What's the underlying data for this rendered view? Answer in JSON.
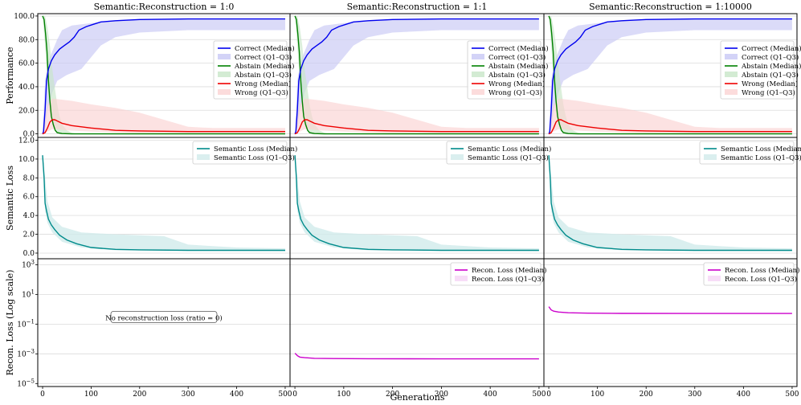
{
  "chart_data": {
    "type": "line",
    "xlabel": "Generations",
    "xlim": [
      -10,
      510
    ],
    "xticks": [
      0,
      100,
      200,
      300,
      400,
      500
    ],
    "columns": [
      {
        "title": "Semantic:Reconstruction = 1:0",
        "ratio": 0
      },
      {
        "title": "Semantic:Reconstruction = 1:1",
        "ratio": 1
      },
      {
        "title": "Semantic:Reconstruction = 1:10000",
        "ratio": 10000
      }
    ],
    "rows": [
      {
        "key": "performance",
        "ylabel": "Performance",
        "ylim": [
          -3,
          102
        ],
        "yticks": [
          0.0,
          20.0,
          40.0,
          60.0,
          80.0,
          100.0
        ],
        "grid": true,
        "legend_position": "center-right",
        "legend": [
          "Correct (Median)",
          "Correct (Q1–Q3)",
          "Abstain (Median)",
          "Abstain (Q1–Q3)",
          "Wrong (Median)",
          "Wrong (Q1–Q3)"
        ]
      },
      {
        "key": "semantic",
        "ylabel": "Semantic Loss",
        "ylim": [
          -0.6,
          12.3
        ],
        "yticks": [
          0.0,
          2.0,
          4.0,
          6.0,
          8.0,
          10.0,
          12.0
        ],
        "grid": true,
        "legend_position": "top-right",
        "legend": [
          "Semantic Loss (Median)",
          "Semantic Loss (Q1–Q3)"
        ]
      },
      {
        "key": "recon",
        "ylabel": "Recon. Loss (Log scale)",
        "scale": "log",
        "ylim_exponent": [
          -5.2,
          3.4
        ],
        "yticks_exponent": [
          -5,
          -3,
          -1,
          1,
          3
        ],
        "grid": true,
        "legend_position": "top-right",
        "legend": [
          "Recon. Loss (Median)",
          "Recon. Loss (Q1–Q3)"
        ],
        "annotation": "No reconstruction loss (ratio = 0)"
      }
    ],
    "series": {
      "correct": {
        "color": "#0000ee",
        "band_color": "#c8c8f5",
        "median": [
          [
            0,
            0
          ],
          [
            2,
            2
          ],
          [
            5,
            20
          ],
          [
            8,
            45
          ],
          [
            12,
            55
          ],
          [
            18,
            62
          ],
          [
            25,
            67
          ],
          [
            35,
            72
          ],
          [
            45,
            75
          ],
          [
            55,
            78
          ],
          [
            65,
            82
          ],
          [
            75,
            88
          ],
          [
            90,
            91
          ],
          [
            105,
            93
          ],
          [
            120,
            95
          ],
          [
            150,
            96
          ],
          [
            200,
            97
          ],
          [
            300,
            97.5
          ],
          [
            500,
            97.5
          ]
        ],
        "q1": [
          [
            0,
            0
          ],
          [
            5,
            5
          ],
          [
            10,
            20
          ],
          [
            20,
            35
          ],
          [
            30,
            45
          ],
          [
            50,
            50
          ],
          [
            80,
            55
          ],
          [
            120,
            75
          ],
          [
            150,
            82
          ],
          [
            200,
            86
          ],
          [
            250,
            87
          ],
          [
            300,
            88
          ],
          [
            500,
            88
          ]
        ],
        "q3": [
          [
            0,
            0
          ],
          [
            5,
            45
          ],
          [
            10,
            60
          ],
          [
            20,
            70
          ],
          [
            30,
            80
          ],
          [
            40,
            88
          ],
          [
            60,
            92
          ],
          [
            100,
            94
          ],
          [
            150,
            96
          ],
          [
            200,
            97
          ],
          [
            500,
            97.5
          ]
        ]
      },
      "abstain": {
        "color": "#008000",
        "band_color": "#c8e6c8",
        "median": [
          [
            0,
            100
          ],
          [
            3,
            97
          ],
          [
            6,
            85
          ],
          [
            9,
            70
          ],
          [
            12,
            45
          ],
          [
            15,
            28
          ],
          [
            18,
            15
          ],
          [
            22,
            8
          ],
          [
            26,
            3
          ],
          [
            30,
            1
          ],
          [
            40,
            0.3
          ],
          [
            60,
            0
          ],
          [
            500,
            0
          ]
        ],
        "q1": [
          [
            0,
            100
          ],
          [
            5,
            75
          ],
          [
            10,
            40
          ],
          [
            15,
            20
          ],
          [
            20,
            8
          ],
          [
            25,
            3
          ],
          [
            30,
            1
          ],
          [
            40,
            0
          ],
          [
            500,
            0
          ]
        ],
        "q3": [
          [
            0,
            100
          ],
          [
            5,
            100
          ],
          [
            10,
            90
          ],
          [
            15,
            75
          ],
          [
            20,
            55
          ],
          [
            25,
            40
          ],
          [
            30,
            25
          ],
          [
            35,
            15
          ],
          [
            40,
            8
          ],
          [
            50,
            3
          ],
          [
            60,
            1
          ],
          [
            70,
            0
          ],
          [
            500,
            0
          ]
        ]
      },
      "wrong": {
        "color": "#ee0000",
        "band_color": "#fbd3d3",
        "median": [
          [
            0,
            0
          ],
          [
            5,
            1
          ],
          [
            10,
            5
          ],
          [
            15,
            10
          ],
          [
            20,
            12
          ],
          [
            25,
            12
          ],
          [
            30,
            11
          ],
          [
            40,
            9
          ],
          [
            60,
            7
          ],
          [
            80,
            6
          ],
          [
            100,
            5
          ],
          [
            150,
            3
          ],
          [
            200,
            2.5
          ],
          [
            300,
            2
          ],
          [
            500,
            2
          ]
        ],
        "q1": [
          [
            0,
            0
          ],
          [
            10,
            2
          ],
          [
            20,
            4
          ],
          [
            30,
            4
          ],
          [
            50,
            3
          ],
          [
            100,
            2
          ],
          [
            200,
            0.5
          ],
          [
            500,
            0
          ]
        ],
        "q3": [
          [
            0,
            0
          ],
          [
            10,
            25
          ],
          [
            20,
            30
          ],
          [
            60,
            28
          ],
          [
            100,
            25
          ],
          [
            150,
            22
          ],
          [
            200,
            18
          ],
          [
            250,
            12
          ],
          [
            300,
            6
          ],
          [
            350,
            5
          ],
          [
            500,
            5
          ]
        ]
      },
      "semantic": {
        "color": "#008b8b",
        "band_color": "#d1ebeb",
        "median": [
          [
            0,
            10.4
          ],
          [
            3,
            8
          ],
          [
            5,
            5.3
          ],
          [
            8,
            4.5
          ],
          [
            12,
            3.6
          ],
          [
            18,
            3.0
          ],
          [
            25,
            2.5
          ],
          [
            35,
            1.9
          ],
          [
            50,
            1.4
          ],
          [
            70,
            1.0
          ],
          [
            100,
            0.6
          ],
          [
            150,
            0.4
          ],
          [
            200,
            0.35
          ],
          [
            300,
            0.3
          ],
          [
            500,
            0.3
          ]
        ],
        "q1": [
          [
            0,
            10.3
          ],
          [
            5,
            4.5
          ],
          [
            10,
            3.2
          ],
          [
            20,
            2.2
          ],
          [
            40,
            1.2
          ],
          [
            80,
            0.6
          ],
          [
            150,
            0.3
          ],
          [
            500,
            0.2
          ]
        ],
        "q3": [
          [
            0,
            10.5
          ],
          [
            5,
            8
          ],
          [
            10,
            5.5
          ],
          [
            20,
            3.8
          ],
          [
            40,
            2.8
          ],
          [
            80,
            2.2
          ],
          [
            150,
            2.0
          ],
          [
            250,
            1.8
          ],
          [
            300,
            0.9
          ],
          [
            400,
            0.6
          ],
          [
            500,
            0.5
          ]
        ]
      },
      "recon": {
        "color": "#cc00cc",
        "band_color": "#f5d5f5",
        "median_1to1": [
          [
            0,
            0.0011
          ],
          [
            3,
            0.0009
          ],
          [
            5,
            0.00075
          ],
          [
            10,
            0.0006
          ],
          [
            20,
            0.00055
          ],
          [
            40,
            0.0005
          ],
          [
            80,
            0.00048
          ],
          [
            150,
            0.00047
          ],
          [
            300,
            0.00046
          ],
          [
            500,
            0.00046
          ]
        ],
        "median_1to10000": [
          [
            0,
            1.5
          ],
          [
            3,
            1.1
          ],
          [
            5,
            0.9
          ],
          [
            10,
            0.75
          ],
          [
            20,
            0.65
          ],
          [
            40,
            0.58
          ],
          [
            80,
            0.55
          ],
          [
            150,
            0.53
          ],
          [
            300,
            0.52
          ],
          [
            500,
            0.52
          ]
        ]
      }
    }
  }
}
